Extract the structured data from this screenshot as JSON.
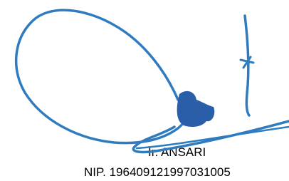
{
  "signature": {
    "name": "Ir. ANSARI",
    "id_line": "NIP. 196409121997031005"
  }
}
